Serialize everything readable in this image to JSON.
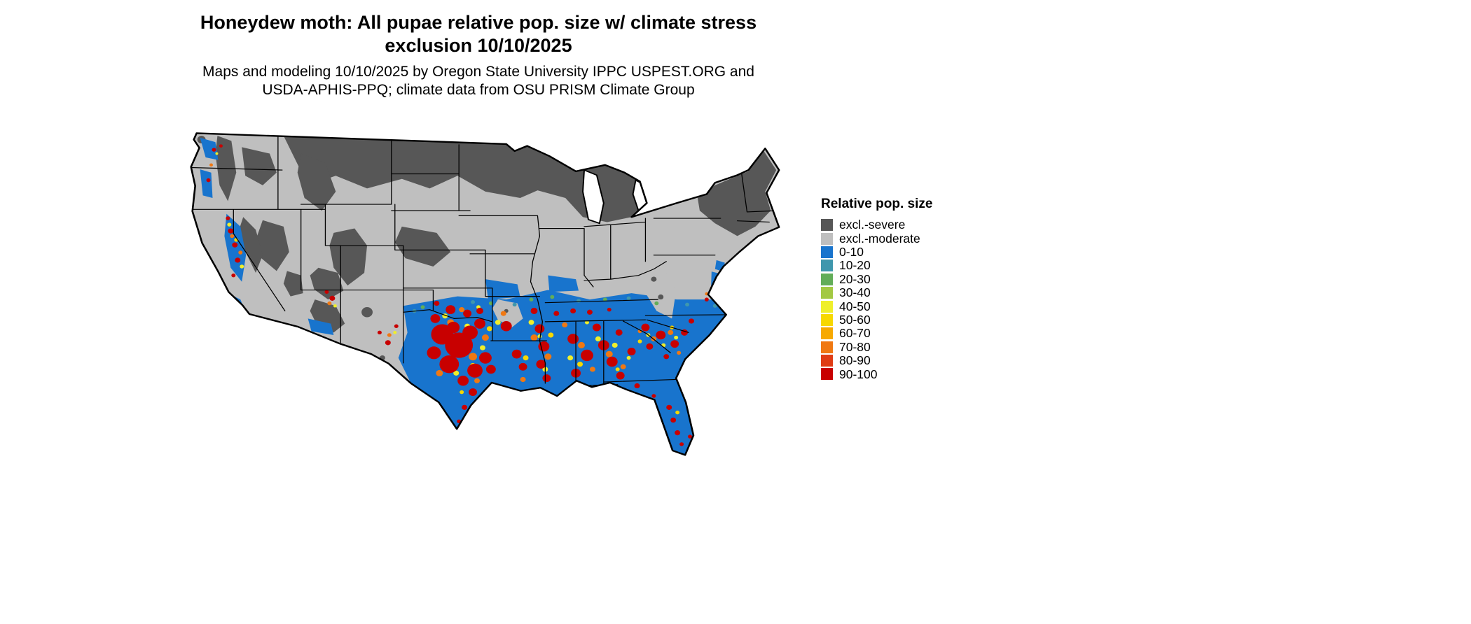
{
  "figure": {
    "title_line1": "Honeydew moth: All pupae relative pop. size w/ climate stress",
    "title_line2": "exclusion 10/10/2025",
    "subtitle_line1": "Maps and modeling 10/10/2025 by Oregon State University IPPC USPEST.ORG and",
    "subtitle_line2": "USDA-APHIS-PPQ; climate data from OSU PRISM Climate Group"
  },
  "legend": {
    "title": "Relative pop. size",
    "items": [
      {
        "label": "excl.-severe",
        "color": "#575757"
      },
      {
        "label": "excl.-moderate",
        "color": "#bfbfbf"
      },
      {
        "label": "0-10",
        "color": "#1874cd"
      },
      {
        "label": "10-20",
        "color": "#3f97ad"
      },
      {
        "label": "20-30",
        "color": "#62ad58"
      },
      {
        "label": "30-40",
        "color": "#a3c943"
      },
      {
        "label": "40-50",
        "color": "#efef2b"
      },
      {
        "label": "50-60",
        "color": "#f7d800"
      },
      {
        "label": "60-70",
        "color": "#f7a900"
      },
      {
        "label": "70-80",
        "color": "#f07812"
      },
      {
        "label": "80-90",
        "color": "#e03c14"
      },
      {
        "label": "90-100",
        "color": "#c80000"
      }
    ]
  }
}
